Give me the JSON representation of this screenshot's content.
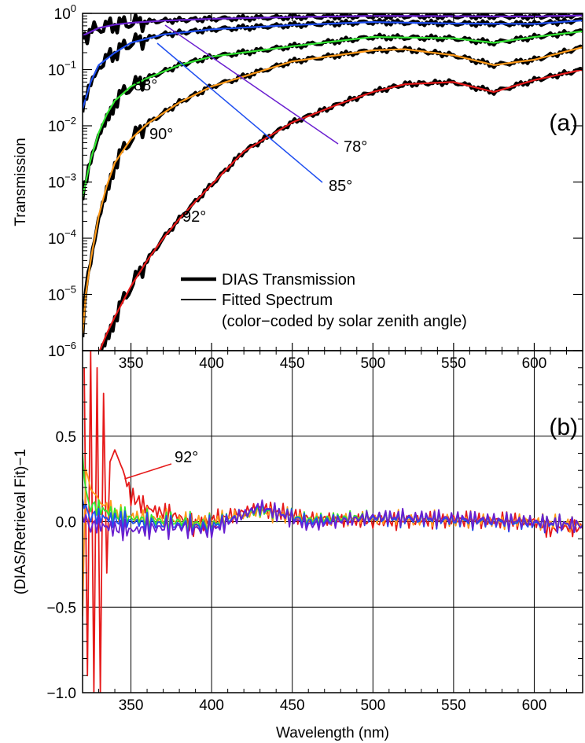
{
  "chart_data": [
    {
      "type": "line",
      "panel": "(a)",
      "xlabel": "",
      "ylabel": "Transmission",
      "yscale": "log",
      "xlim": [
        320,
        630
      ],
      "ylim": [
        1e-06,
        1
      ],
      "grid": false,
      "x_ticks": [
        350,
        400,
        450,
        500,
        550,
        600
      ],
      "y_ticks": [
        {
          "base": "10",
          "exp": "0",
          "value": 1
        },
        {
          "base": "10",
          "exp": "−1",
          "value": 0.1
        },
        {
          "base": "10",
          "exp": "−2",
          "value": 0.01
        },
        {
          "base": "10",
          "exp": "−3",
          "value": 0.001
        },
        {
          "base": "10",
          "exp": "−4",
          "value": 0.0001
        },
        {
          "base": "10",
          "exp": "−5",
          "value": 1e-05
        },
        {
          "base": "10",
          "exp": "−6",
          "value": 1e-06
        }
      ],
      "legend": {
        "placement": "bottom-center",
        "entries": [
          "DIAS Transmission",
          "Fitted Spectrum",
          "(color−coded by solar zenith angle)"
        ]
      },
      "series": [
        {
          "label": "78°",
          "color": "#6a1fd0",
          "x": [
            320,
            330,
            340,
            350,
            370,
            400,
            450,
            500,
            550,
            600,
            630
          ],
          "y": [
            0.4,
            0.55,
            0.63,
            0.68,
            0.74,
            0.8,
            0.86,
            0.9,
            0.89,
            0.88,
            0.92
          ]
        },
        {
          "label": "85°",
          "color": "#1f4ff0",
          "x": [
            320,
            325,
            330,
            340,
            350,
            370,
            400,
            450,
            500,
            550,
            600,
            630
          ],
          "y": [
            0.02,
            0.06,
            0.12,
            0.2,
            0.3,
            0.42,
            0.52,
            0.62,
            0.7,
            0.66,
            0.65,
            0.75
          ]
        },
        {
          "label": "88°",
          "color": "#33e633",
          "x": [
            320,
            325,
            330,
            335,
            340,
            350,
            360,
            380,
            400,
            450,
            500,
            550,
            575,
            600,
            630
          ],
          "y": [
            0.00055,
            0.0025,
            0.0075,
            0.016,
            0.028,
            0.05,
            0.07,
            0.12,
            0.17,
            0.26,
            0.38,
            0.36,
            0.3,
            0.38,
            0.48
          ]
        },
        {
          "label": "90°",
          "color": "#ff9a1a",
          "x": [
            320,
            322,
            325,
            330,
            335,
            340,
            350,
            360,
            380,
            400,
            450,
            500,
            520,
            550,
            575,
            600,
            630
          ],
          "y": [
            2e-06,
            1e-05,
            4e-05,
            0.00025,
            0.00085,
            0.0022,
            0.0058,
            0.0108,
            0.026,
            0.05,
            0.14,
            0.22,
            0.23,
            0.18,
            0.12,
            0.15,
            0.25
          ]
        },
        {
          "label": "92°",
          "color": "#e61a1a",
          "x": [
            327,
            330,
            335,
            340,
            350,
            360,
            370,
            380,
            390,
            400,
            420,
            450,
            480,
            500,
            520,
            550,
            575,
            600,
            630
          ],
          "y": [
            5e-07,
            9e-07,
            2e-06,
            4e-06,
            1.4e-05,
            4e-05,
            0.0001,
            0.00022,
            0.00045,
            0.0009,
            0.0035,
            0.0115,
            0.025,
            0.04,
            0.055,
            0.06,
            0.04,
            0.065,
            0.1
          ]
        }
      ]
    },
    {
      "type": "line",
      "panel": "(b)",
      "xlabel": "Wavelength (nm)",
      "ylabel": "(DIAS/Retrieval Fit)−1",
      "xlim": [
        320,
        630
      ],
      "ylim": [
        -1.0,
        1.0
      ],
      "grid": true,
      "x_ticks": [
        350,
        400,
        450,
        500,
        550,
        600
      ],
      "y_ticks": [
        {
          "value": 0.5,
          "label": "0.5"
        },
        {
          "value": 0.0,
          "label": "0.0"
        },
        {
          "value": -0.5,
          "label": "−0.5"
        },
        {
          "value": -1.0,
          "label": "−1.0"
        }
      ],
      "annotation": {
        "text": "92°",
        "color": "#e61a1a",
        "x": 346,
        "y": 0.25
      },
      "series": [
        {
          "label": "92°",
          "color": "#e61a1a",
          "x": [
            321,
            323,
            325,
            327,
            329,
            331,
            333,
            335,
            337,
            340,
            345,
            350,
            360,
            370,
            380,
            390,
            400,
            430,
            460,
            500,
            550,
            600,
            610,
            620,
            630
          ],
          "y": [
            0.9,
            -0.9,
            1.0,
            -1.0,
            0.9,
            -1.0,
            0.75,
            -0.3,
            0.35,
            0.42,
            0.3,
            0.15,
            0.08,
            0.05,
            0.03,
            -0.03,
            0.01,
            0.08,
            0.02,
            0.0,
            0.01,
            0.0,
            -0.05,
            -0.03,
            -0.04
          ]
        },
        {
          "label": "90°",
          "color": "#ff9a1a",
          "x": [
            320,
            322,
            325,
            328,
            331,
            335,
            340,
            350,
            360,
            380,
            400,
            430,
            460,
            500,
            550,
            600,
            630
          ],
          "y": [
            -0.5,
            0.3,
            0.2,
            0.15,
            0.12,
            0.08,
            0.05,
            0.03,
            0.02,
            0.0,
            0.0,
            0.06,
            0.01,
            0.02,
            0.01,
            0.0,
            -0.02
          ]
        },
        {
          "label": "88°",
          "color": "#33e633",
          "x": [
            320,
            322,
            325,
            330,
            335,
            340,
            350,
            360,
            380,
            400,
            430,
            460,
            500,
            550,
            600,
            630
          ],
          "y": [
            0.42,
            0.15,
            0.1,
            0.08,
            0.06,
            0.04,
            0.02,
            0.01,
            0.0,
            -0.02,
            0.07,
            0.01,
            0.03,
            0.01,
            0.0,
            -0.02
          ]
        },
        {
          "label": "85°",
          "color": "#1f4ff0",
          "x": [
            320,
            322,
            325,
            330,
            335,
            340,
            350,
            360,
            380,
            400,
            430,
            460,
            500,
            550,
            600,
            630
          ],
          "y": [
            0.15,
            0.06,
            0.04,
            0.03,
            0.02,
            0.01,
            0.0,
            -0.01,
            -0.02,
            -0.03,
            0.08,
            0.0,
            0.02,
            0.01,
            -0.01,
            -0.02
          ]
        },
        {
          "label": "78°",
          "color": "#6a1fd0",
          "x": [
            320,
            322,
            325,
            330,
            335,
            340,
            350,
            360,
            380,
            400,
            430,
            460,
            500,
            550,
            600,
            630
          ],
          "y": [
            0.05,
            0.0,
            -0.02,
            -0.02,
            -0.03,
            -0.04,
            -0.05,
            -0.04,
            -0.03,
            -0.05,
            0.09,
            -0.02,
            0.03,
            0.02,
            0.0,
            -0.02
          ]
        }
      ]
    }
  ]
}
